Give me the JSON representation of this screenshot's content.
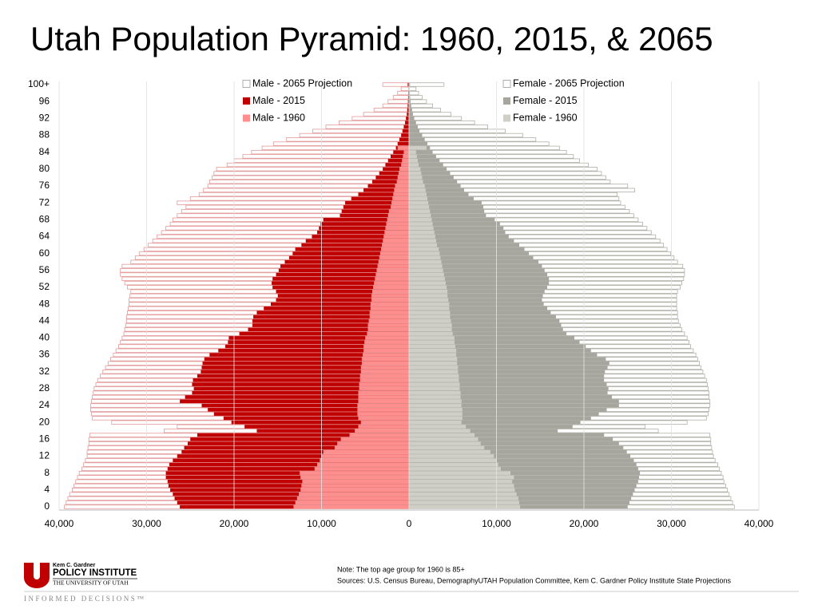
{
  "chart_data": {
    "type": "pyramid",
    "title": "Utah Population Pyramid: 1960, 2015, & 2065",
    "categories": [
      "0",
      null,
      null,
      null,
      "4",
      null,
      null,
      null,
      "8",
      null,
      null,
      null,
      "12",
      null,
      null,
      null,
      "16",
      null,
      null,
      null,
      "20",
      null,
      null,
      null,
      "24",
      null,
      null,
      null,
      "28",
      null,
      null,
      null,
      "32",
      null,
      null,
      null,
      "36",
      null,
      null,
      null,
      "40",
      null,
      null,
      null,
      "44",
      null,
      null,
      null,
      "48",
      null,
      null,
      null,
      "52",
      null,
      null,
      null,
      "56",
      null,
      null,
      null,
      "60",
      null,
      null,
      null,
      "64",
      null,
      null,
      null,
      "68",
      null,
      null,
      null,
      "72",
      null,
      null,
      null,
      "76",
      null,
      null,
      null,
      "80",
      null,
      null,
      null,
      "84",
      null,
      null,
      null,
      "88",
      null,
      null,
      null,
      "92",
      null,
      null,
      null,
      "96",
      null,
      null,
      null,
      "100+"
    ],
    "xlim": [
      -40000,
      40000
    ],
    "xticks": [
      {
        "value": -40000,
        "label": "40,000"
      },
      {
        "value": -30000,
        "label": "30,000"
      },
      {
        "value": -20000,
        "label": "20,000"
      },
      {
        "value": -10000,
        "label": "10,000"
      },
      0,
      {
        "value": 10000,
        "label": "10,000"
      },
      {
        "value": 20000,
        "label": "20,000"
      },
      {
        "value": 30000,
        "label": "30,000"
      },
      {
        "value": 40000,
        "label": "40,000"
      }
    ],
    "grid": true,
    "series": [
      {
        "name": "Male - 2065 Projection",
        "color": "#e39a9a",
        "fill": "#ffffff",
        "values": [
          -39400,
          -39200,
          -39000,
          -38800,
          -38500,
          -38300,
          -38100,
          -37900,
          -37700,
          -37400,
          -37200,
          -37000,
          -36800,
          -36800,
          -36700,
          -36600,
          -36600,
          -36500,
          -28000,
          -26500,
          -34000,
          -36200,
          -36300,
          -36400,
          -36400,
          -36300,
          -36200,
          -36100,
          -36000,
          -35800,
          -35600,
          -35300,
          -35000,
          -34700,
          -34400,
          -34100,
          -33800,
          -33500,
          -33200,
          -33000,
          -32800,
          -32600,
          -32500,
          -32400,
          -32300,
          -32300,
          -32200,
          -32100,
          -32000,
          -32000,
          -31900,
          -31800,
          -32200,
          -32500,
          -32800,
          -33000,
          -33000,
          -32800,
          -31800,
          -31300,
          -30800,
          -30300,
          -29800,
          -29300,
          -28800,
          -28300,
          -27800,
          -27300,
          -27000,
          -26500,
          -26000,
          -25500,
          -26500,
          -25000,
          -24000,
          -23500,
          -23000,
          -22800,
          -22500,
          -22300,
          -22000,
          -20800,
          -20000,
          -19000,
          -18000,
          -16800,
          -15500,
          -14000,
          -12500,
          -11000,
          -9500,
          -8000,
          -6500,
          -5200,
          -4000,
          -3000,
          -2400,
          -1800,
          -1300,
          -900,
          -3000
        ]
      },
      {
        "name": "Male - 2015",
        "color": "#c00000",
        "values": [
          -26200,
          -26500,
          -26800,
          -27000,
          -27300,
          -27500,
          -27600,
          -27800,
          -27800,
          -27600,
          -27400,
          -27000,
          -26500,
          -26000,
          -25700,
          -25300,
          -25000,
          -24200,
          -17400,
          -18800,
          -20300,
          -21200,
          -22300,
          -23000,
          -23700,
          -26200,
          -25600,
          -24800,
          -24600,
          -24800,
          -24700,
          -24200,
          -23800,
          -23700,
          -23600,
          -23400,
          -22800,
          -21800,
          -21000,
          -20700,
          -20600,
          -19400,
          -18400,
          -17900,
          -17900,
          -17800,
          -17400,
          -16600,
          -15800,
          -15200,
          -15000,
          -15200,
          -15600,
          -15700,
          -15600,
          -15200,
          -14900,
          -14700,
          -14200,
          -13700,
          -13300,
          -13000,
          -12300,
          -11800,
          -11100,
          -10500,
          -10300,
          -10100,
          -9800,
          -7900,
          -7700,
          -7500,
          -7300,
          -6600,
          -5800,
          -5200,
          -4700,
          -4200,
          -3800,
          -3400,
          -3000,
          -2700,
          -2400,
          -2100,
          -1800,
          -1500,
          -1300,
          -1100,
          -900,
          -750,
          -600,
          -450,
          -350,
          -250,
          -200,
          -150,
          -120,
          -100,
          -80,
          -60,
          -150
        ]
      },
      {
        "name": "Male - 1960",
        "color": "#ff8f8f",
        "values": [
          -13200,
          -13000,
          -12800,
          -12600,
          -12400,
          -12300,
          -12200,
          -12400,
          -12500,
          -10800,
          -10500,
          -10200,
          -10000,
          -9800,
          -8500,
          -8200,
          -7800,
          -6800,
          -6200,
          -5800,
          -5500,
          -5800,
          -5900,
          -5900,
          -5900,
          -5800,
          -5800,
          -5800,
          -5700,
          -5700,
          -5600,
          -5600,
          -5500,
          -5500,
          -5400,
          -5400,
          -5300,
          -5200,
          -5200,
          -5100,
          -5000,
          -4800,
          -4700,
          -4700,
          -4600,
          -4500,
          -4500,
          -4400,
          -4400,
          -4300,
          -4300,
          -4200,
          -4100,
          -4000,
          -3900,
          -3800,
          -3700,
          -3600,
          -3500,
          -3400,
          -3300,
          -3200,
          -3100,
          -3000,
          -2900,
          -2800,
          -2700,
          -2600,
          -2500,
          -2400,
          -2300,
          -2100,
          -2000,
          -1900,
          -1800,
          -1700,
          -1600,
          -1400,
          -1300,
          -1200,
          -1100,
          -900,
          -800,
          -700,
          -600,
          -1300,
          null,
          null,
          null,
          null,
          null,
          null,
          null,
          null,
          null,
          null,
          null,
          null,
          null,
          null,
          null
        ]
      },
      {
        "name": "Female - 2065 Projection",
        "color": "#b0b0a8",
        "fill": "#ffffff",
        "values": [
          37200,
          37000,
          36800,
          36600,
          36400,
          36200,
          36000,
          35900,
          35700,
          35500,
          35300,
          35000,
          34800,
          34700,
          34600,
          34500,
          34500,
          34400,
          28500,
          27000,
          31800,
          34000,
          34200,
          34300,
          34400,
          34400,
          34300,
          34300,
          34200,
          34100,
          34000,
          33800,
          33600,
          33400,
          33200,
          33000,
          32800,
          32500,
          32200,
          32000,
          31800,
          31500,
          31200,
          31000,
          30800,
          30700,
          30700,
          30600,
          30600,
          30600,
          30600,
          30700,
          31000,
          31200,
          31400,
          31500,
          31500,
          31300,
          30700,
          30300,
          29900,
          29500,
          29100,
          28700,
          28200,
          27700,
          27200,
          26700,
          26200,
          25700,
          25200,
          24700,
          24200,
          24000,
          23800,
          25800,
          25000,
          23000,
          22500,
          22000,
          21500,
          20500,
          19500,
          18800,
          18000,
          17200,
          16000,
          14500,
          13000,
          11000,
          9000,
          7500,
          6000,
          4800,
          3600,
          2700,
          2000,
          1500,
          1100,
          800,
          4000
        ]
      },
      {
        "name": "Female - 2015",
        "color": "#a6a69e",
        "values": [
          25000,
          25200,
          25400,
          25600,
          25800,
          26000,
          26200,
          26300,
          26400,
          26200,
          26000,
          25700,
          25300,
          24900,
          24500,
          24000,
          23300,
          22300,
          17000,
          18700,
          19600,
          20800,
          21700,
          22600,
          24000,
          24000,
          23200,
          22700,
          22800,
          22600,
          22300,
          22300,
          22400,
          22700,
          22900,
          22500,
          21500,
          20800,
          20200,
          19500,
          18900,
          18000,
          17600,
          17400,
          17200,
          16800,
          16200,
          15800,
          15400,
          15200,
          15300,
          15500,
          15800,
          16000,
          16000,
          15800,
          15500,
          15200,
          14800,
          14200,
          13700,
          13200,
          12600,
          12000,
          11400,
          11000,
          10800,
          10400,
          9800,
          8800,
          8600,
          8500,
          8300,
          7400,
          6800,
          6300,
          5900,
          5500,
          5100,
          4700,
          4300,
          3900,
          3500,
          3100,
          2700,
          2400,
          2100,
          1800,
          1500,
          1200,
          1000,
          800,
          600,
          450,
          350,
          250,
          180,
          130,
          90,
          60,
          120
        ]
      },
      {
        "name": "Female - 1960",
        "color": "#cfcfc7",
        "values": [
          12700,
          12600,
          12500,
          12300,
          12100,
          12000,
          11800,
          12000,
          11600,
          10500,
          10200,
          10000,
          9700,
          9300,
          8600,
          8200,
          7900,
          7500,
          7000,
          6500,
          6000,
          6100,
          6100,
          6100,
          6000,
          6000,
          5900,
          5900,
          5800,
          5800,
          5700,
          5700,
          5600,
          5600,
          5500,
          5500,
          5400,
          5400,
          5300,
          5200,
          5200,
          5000,
          4900,
          4900,
          4800,
          4700,
          4700,
          4600,
          4600,
          4500,
          4400,
          4400,
          4300,
          4200,
          4100,
          4000,
          3900,
          3800,
          3700,
          3600,
          3500,
          3400,
          3200,
          3100,
          3000,
          2900,
          2800,
          2700,
          2600,
          2500,
          2400,
          2300,
          2200,
          2100,
          2000,
          1900,
          1800,
          1600,
          1500,
          1400,
          1300,
          1100,
          1000,
          900,
          800,
          2000,
          null,
          null,
          null,
          null,
          null,
          null,
          null,
          null,
          null,
          null,
          null,
          null,
          null,
          null,
          null
        ]
      }
    ]
  },
  "notes": [
    "Note: The top age group for 1960 is 85+",
    "Sources: U.S. Census Bureau, DemographyUTAH Population Committee, Kem C. Gardner Policy Institute State Projections"
  ],
  "logo": {
    "line1": "Kem C. Gardner",
    "line2": "POLICY INSTITUTE",
    "line3": "THE UNIVERSITY OF UTAH",
    "tagline": "INFORMED DECISIONS™"
  }
}
